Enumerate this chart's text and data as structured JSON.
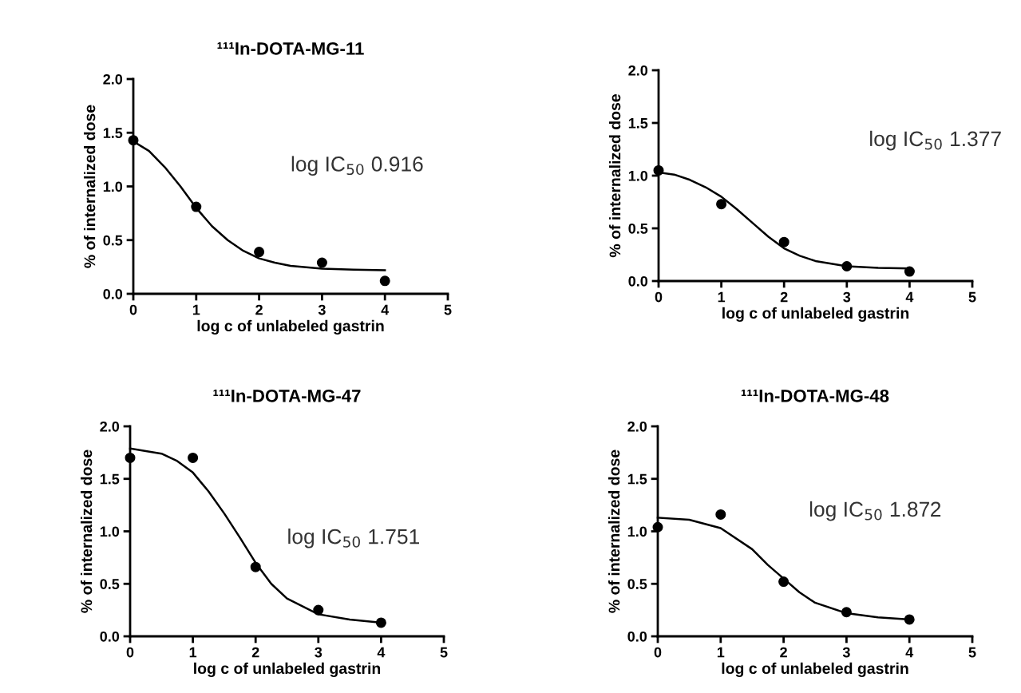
{
  "chart_data": [
    {
      "type": "scatter",
      "title": "¹¹¹In-DOTA-MG-11",
      "xlabel": "log c of unlabeled gastrin",
      "ylabel": "% of internalized dose",
      "annotations": [
        "log IC$_{50}$ 0.916"
      ],
      "xlim": [
        0,
        5
      ],
      "ylim": [
        0,
        2.0
      ],
      "xticks": [
        0,
        1,
        2,
        3,
        4,
        5
      ],
      "yticks": [
        {
          "value": 0,
          "label": "0.0"
        },
        {
          "value": 0.5,
          "label": "0.5"
        },
        {
          "value": 1,
          "label": "1.0"
        },
        {
          "value": 1.5,
          "label": "1.5"
        },
        {
          "value": 2,
          "label": "2.0"
        }
      ],
      "grid": false,
      "legend": false,
      "series": [
        {
          "type": "line",
          "color": "#000000",
          "marker": "none",
          "line_style": "solid",
          "x": [
            0,
            0.25,
            0.5,
            0.75,
            1,
            1.25,
            1.5,
            1.75,
            2,
            2.25,
            2.5,
            3,
            3.5,
            4
          ],
          "values": [
            1.42,
            1.33,
            1.18,
            1.0,
            0.8,
            0.63,
            0.5,
            0.4,
            0.33,
            0.29,
            0.26,
            0.235,
            0.225,
            0.22
          ]
        },
        {
          "color": "#000000",
          "marker": "circle",
          "x": [
            0,
            1,
            2,
            3,
            4
          ],
          "values": [
            1.43,
            0.81,
            0.39,
            0.29,
            0.12
          ]
        }
      ]
    },
    {
      "type": "scatter",
      "xlabel": "log c of unlabeled gastrin",
      "ylabel": "% of internalized dose",
      "annotations": [
        "log IC$_{50}$ 1.377"
      ],
      "xlim": [
        0,
        5
      ],
      "ylim": [
        0,
        2.0
      ],
      "xticks": [
        0,
        1,
        2,
        3,
        4,
        5
      ],
      "yticks": [
        {
          "value": 0,
          "label": "0.0"
        },
        {
          "value": 0.5,
          "label": "0.5"
        },
        {
          "value": 1,
          "label": "1.0"
        },
        {
          "value": 1.5,
          "label": "1.5"
        },
        {
          "value": 2,
          "label": "2.0"
        }
      ],
      "grid": false,
      "legend": false,
      "series": [
        {
          "type": "line",
          "color": "#000000",
          "marker": "none",
          "line_style": "solid",
          "x": [
            0,
            0.25,
            0.5,
            0.75,
            1,
            1.25,
            1.5,
            1.75,
            2,
            2.25,
            2.5,
            3,
            3.5,
            4
          ],
          "values": [
            1.03,
            1.01,
            0.96,
            0.89,
            0.8,
            0.68,
            0.55,
            0.42,
            0.31,
            0.24,
            0.19,
            0.14,
            0.125,
            0.12
          ]
        },
        {
          "color": "#000000",
          "marker": "circle",
          "x": [
            0,
            1,
            2,
            3,
            4
          ],
          "values": [
            1.05,
            0.73,
            0.37,
            0.14,
            0.09
          ]
        }
      ]
    },
    {
      "type": "scatter",
      "title": "¹¹¹In-DOTA-MG-47",
      "xlabel": "log c of unlabeled gastrin",
      "ylabel": "% of internalized dose",
      "annotations": [
        "log IC$_{50}$ 1.751"
      ],
      "xlim": [
        0,
        5
      ],
      "ylim": [
        0,
        2.0
      ],
      "xticks": [
        0,
        1,
        2,
        3,
        4,
        5
      ],
      "yticks": [
        {
          "value": 0,
          "label": "0.0"
        },
        {
          "value": 0.5,
          "label": "0.5"
        },
        {
          "value": 1,
          "label": "1.0"
        },
        {
          "value": 1.5,
          "label": "1.5"
        },
        {
          "value": 2,
          "label": "2.0"
        }
      ],
      "grid": false,
      "legend": false,
      "series": [
        {
          "type": "line",
          "color": "#000000",
          "marker": "none",
          "line_style": "solid",
          "x": [
            0,
            0.5,
            0.75,
            1,
            1.25,
            1.5,
            1.75,
            2,
            2.25,
            2.5,
            3,
            3.5,
            4
          ],
          "values": [
            1.79,
            1.74,
            1.67,
            1.56,
            1.38,
            1.17,
            0.94,
            0.7,
            0.5,
            0.36,
            0.21,
            0.16,
            0.13
          ]
        },
        {
          "color": "#000000",
          "marker": "circle",
          "x": [
            0,
            1,
            2,
            3,
            4
          ],
          "values": [
            1.7,
            1.7,
            0.66,
            0.25,
            0.13
          ]
        }
      ]
    },
    {
      "type": "scatter",
      "title": "¹¹¹In-DOTA-MG-48",
      "xlabel": "log c of unlabeled gastrin",
      "ylabel": "% of internalized dose",
      "annotations": [
        "log IC$_{50}$ 1.872"
      ],
      "xlim": [
        0,
        5
      ],
      "ylim": [
        0,
        2.0
      ],
      "xticks": [
        0,
        1,
        2,
        3,
        4,
        5
      ],
      "yticks": [
        {
          "value": 0,
          "label": "0.0"
        },
        {
          "value": 0.5,
          "label": "0.5"
        },
        {
          "value": 1,
          "label": "1.0"
        },
        {
          "value": 1.5,
          "label": "1.5"
        },
        {
          "value": 2,
          "label": "2.0"
        }
      ],
      "grid": false,
      "legend": false,
      "series": [
        {
          "type": "line",
          "color": "#000000",
          "marker": "none",
          "line_style": "solid",
          "x": [
            0,
            0.5,
            1,
            1.5,
            1.75,
            2,
            2.25,
            2.5,
            3,
            3.5,
            4
          ],
          "values": [
            1.13,
            1.11,
            1.03,
            0.83,
            0.68,
            0.55,
            0.42,
            0.32,
            0.22,
            0.18,
            0.16
          ]
        },
        {
          "color": "#000000",
          "marker": "circle",
          "x": [
            0,
            1,
            2,
            3,
            4
          ],
          "values": [
            1.04,
            1.16,
            0.52,
            0.23,
            0.16
          ]
        }
      ]
    }
  ]
}
